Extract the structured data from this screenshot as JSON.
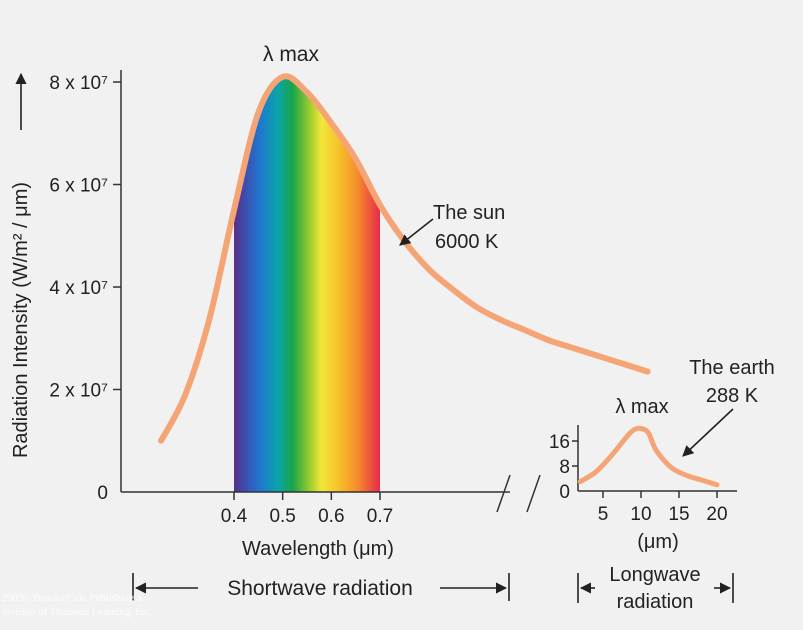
{
  "chart_data": [
    {
      "type": "line",
      "series": [
        {
          "name": "The sun",
          "x": [
            0.25,
            0.3,
            0.35,
            0.4,
            0.45,
            0.5,
            0.55,
            0.6,
            0.65,
            0.7,
            0.75,
            0.8,
            0.85,
            0.9,
            0.95,
            1.0,
            1.05,
            1.1,
            1.15,
            1.2,
            1.25
          ],
          "y": [
            10000000.0,
            19000000.0,
            34000000.0,
            55000000.0,
            74000000.0,
            81000000.0,
            78000000.0,
            72000000.0,
            65000000.0,
            56000000.0,
            49000000.0,
            43500000.0,
            39500000.0,
            36000000.0,
            33500000.0,
            31500000.0,
            29500000.0,
            28000000.0,
            26500000.0,
            25000000.0,
            23500000.0
          ]
        }
      ],
      "ylabel": "Radiation Intensity (W/m² / μm)",
      "xlabel": "Wavelength (μm)",
      "x_ticks": [
        "0.4",
        "0.5",
        "0.6",
        "0.7"
      ],
      "y_ticks": [
        "0",
        "2 x 10⁷",
        "4 x 10⁷",
        "6 x 10⁷",
        "8 x 10⁷"
      ],
      "ylim": [
        0,
        84000000.0
      ],
      "visible_spectrum": [
        0.4,
        0.7
      ],
      "annotations": {
        "peak": "λ max",
        "curve_label_line1": "The sun",
        "curve_label_line2": "6000 K"
      },
      "colors": {
        "curve": "#f5a575",
        "axis": "#333333"
      }
    },
    {
      "type": "line",
      "series": [
        {
          "name": "The earth",
          "x": [
            2,
            4,
            6,
            8,
            9,
            10,
            11,
            12,
            14,
            16,
            18,
            20
          ],
          "y": [
            3,
            6,
            11,
            17,
            19.5,
            20,
            18.5,
            13,
            7.5,
            5,
            3.5,
            2
          ]
        }
      ],
      "xlabel": "(μm)",
      "x_ticks": [
        "5",
        "10",
        "15",
        "20"
      ],
      "y_ticks": [
        "0",
        "8",
        "16"
      ],
      "annotations": {
        "peak": "λ max",
        "curve_label_line1": "The earth",
        "curve_label_line2": "288 K"
      },
      "colors": {
        "curve": "#f5a575"
      }
    }
  ],
  "bands": {
    "shortwave": "Shortwave radiation",
    "longwave_line1": "Longwave",
    "longwave_line2": "radiation"
  },
  "footer": {
    "copyright_line1": "2003© Brooks/Cole Publishing a",
    "copyright_line2": "division of Thomson Learning, Inc."
  }
}
